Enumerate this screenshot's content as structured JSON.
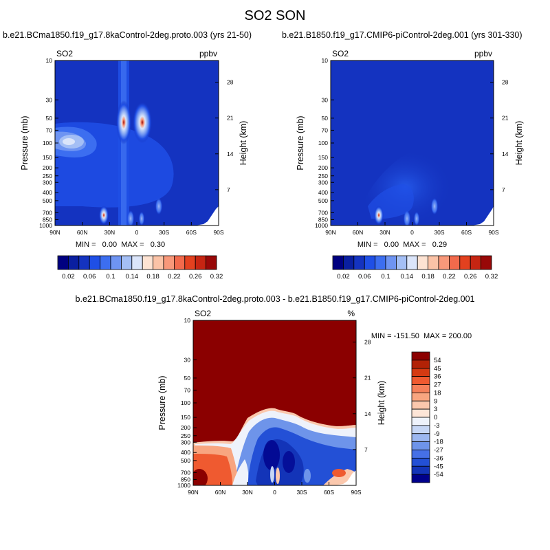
{
  "page": {
    "title": "SO2 SON"
  },
  "panels": [
    {
      "experiment": "b.e21.BCma1850.f19_g17.8kaControl-2deg.proto.003 (yrs 21-50)",
      "left_label": "SO2",
      "right_label": "ppbv",
      "stats": "MIN =   0.00  MAX =   0.30"
    },
    {
      "experiment": "b.e21.B1850.f19_g17.CMIP6-piControl-2deg.001 (yrs 301-330)",
      "left_label": "SO2",
      "right_label": "ppbv",
      "stats": "MIN =   0.00  MAX =   0.29"
    },
    {
      "experiment": "b.e21.BCma1850.f19_g17.8kaControl-2deg.proto.003 - b.e21.B1850.f19_g17.CMIP6-piControl-2deg.001",
      "left_label": "SO2",
      "right_label": "%",
      "stats": "MIN = -151.50  MAX = 200.00"
    }
  ],
  "chart_data": [
    {
      "type": "heatmap",
      "title": "SO2",
      "units": "ppbv",
      "xlabel": "",
      "ylabel": "Pressure (mb)",
      "y2label": "Height (km)",
      "x_ticks": [
        "90N",
        "60N",
        "30N",
        "0",
        "30S",
        "60S",
        "90S"
      ],
      "y_ticks": [
        10,
        30,
        50,
        70,
        100,
        150,
        200,
        250,
        300,
        400,
        500,
        700,
        850,
        1000
      ],
      "y_scale": "log",
      "y_range": [
        10,
        1000
      ],
      "height_ticks_km": [
        28,
        21,
        14,
        7
      ],
      "min": 0.0,
      "max": 0.3,
      "features": [
        {
          "lat": 8,
          "p": 50,
          "value": 0.3
        },
        {
          "lat": 12,
          "p": 50,
          "value": 0.28
        },
        {
          "lat": 35,
          "p": 700,
          "value": 0.3
        },
        {
          "lat": 70,
          "p": 100,
          "value": 0.15
        }
      ]
    },
    {
      "type": "heatmap",
      "title": "SO2",
      "units": "ppbv",
      "xlabel": "",
      "ylabel": "Pressure (mb)",
      "y2label": "Height (km)",
      "x_ticks": [
        "90N",
        "60N",
        "30N",
        "0",
        "30S",
        "60S",
        "90S"
      ],
      "y_ticks": [
        10,
        30,
        50,
        70,
        100,
        150,
        200,
        250,
        300,
        400,
        500,
        700,
        850,
        1000
      ],
      "y_scale": "log",
      "y_range": [
        10,
        1000
      ],
      "height_ticks_km": [
        28,
        21,
        14,
        7
      ],
      "min": 0.0,
      "max": 0.29,
      "features": [
        {
          "lat": 35,
          "p": 700,
          "value": 0.29
        },
        {
          "lat": 0,
          "p": 200,
          "value": 0.06
        }
      ]
    },
    {
      "type": "heatmap",
      "title": "SO2",
      "units": "%",
      "xlabel": "",
      "ylabel": "Pressure (mb)",
      "y2label": "Height (km)",
      "x_ticks": [
        "90N",
        "60N",
        "30N",
        "0",
        "30S",
        "60S",
        "90S"
      ],
      "y_ticks": [
        10,
        30,
        50,
        70,
        100,
        150,
        200,
        250,
        300,
        400,
        500,
        700,
        850,
        1000
      ],
      "y_scale": "log",
      "y_range": [
        10,
        1000
      ],
      "height_ticks_km": [
        28,
        21,
        14,
        7
      ],
      "min": -151.5,
      "max": 200.0,
      "features": [
        {
          "region": "stratosphere",
          "value": 200
        },
        {
          "region": "tropical-troposphere",
          "value": -45
        },
        {
          "region": "northern-high-latitude-troposphere",
          "value": 36
        }
      ]
    }
  ],
  "colorbar_seq": {
    "labels": [
      "0.02",
      "0.06",
      "0.1",
      "0.14",
      "0.18",
      "0.22",
      "0.26",
      "0.32"
    ],
    "colors": [
      "#000080",
      "#0a1fa0",
      "#1433c0",
      "#1f4fe6",
      "#3c6ef0",
      "#6e94f2",
      "#a4bff5",
      "#dbe5fa",
      "#fde3d3",
      "#fbc3a7",
      "#f8987a",
      "#f26a4c",
      "#e3411f",
      "#c62512",
      "#980808"
    ]
  },
  "colorbar_div": {
    "labels": [
      "54",
      "45",
      "36",
      "27",
      "18",
      "9",
      "3",
      "0",
      "-3",
      "-9",
      "-18",
      "-27",
      "-36",
      "-45",
      "-54"
    ],
    "colors": [
      "#8b0000",
      "#b22206",
      "#d53a12",
      "#ef5a30",
      "#f5805a",
      "#f8a580",
      "#fbc8ad",
      "#fde5d7",
      "#eef2fb",
      "#c6d6f5",
      "#9cb7f0",
      "#6e94ea",
      "#4670e6",
      "#2350d6",
      "#1334b8",
      "#00008b"
    ]
  }
}
